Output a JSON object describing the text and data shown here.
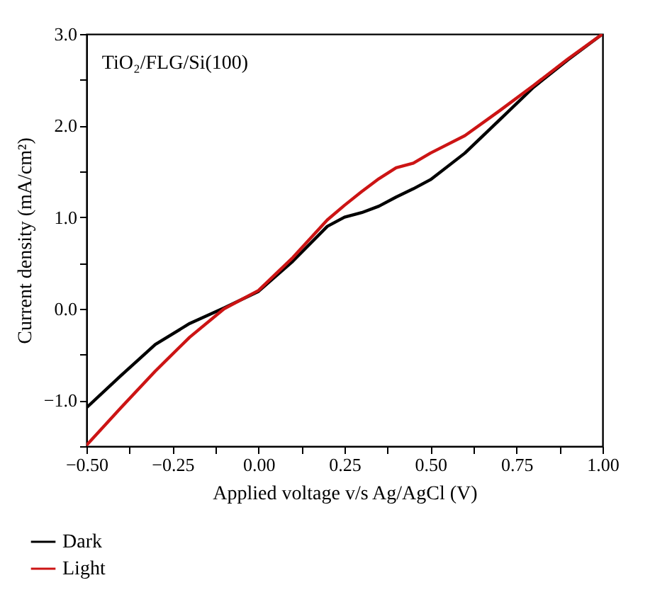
{
  "chart_data": {
    "type": "line",
    "xlabel": "Applied voltage v/s Ag/AgCl (V)",
    "ylabel": "Current density (mA/cm²)",
    "annotations": [
      "TiO₂/FLG/Si(100)"
    ],
    "xlim": [
      -0.5,
      1.0
    ],
    "ylim": [
      -1.5,
      3.0
    ],
    "xticks": [
      {
        "value": -0.5,
        "label": "−0.50"
      },
      {
        "value": -0.375,
        "label": null
      },
      {
        "value": -0.25,
        "label": "−0.25"
      },
      {
        "value": -0.125,
        "label": null
      },
      {
        "value": 0,
        "label": "0.00"
      },
      {
        "value": 0.125,
        "label": null
      },
      {
        "value": 0.25,
        "label": "0.25"
      },
      {
        "value": 0.375,
        "label": null
      },
      {
        "value": 0.5,
        "label": "0.50"
      },
      {
        "value": 0.625,
        "label": null
      },
      {
        "value": 0.75,
        "label": "0.75"
      },
      {
        "value": 0.875,
        "label": null
      },
      {
        "value": 1.0,
        "label": "1.00"
      }
    ],
    "yticks": [
      {
        "value": -1.5,
        "label": null
      },
      {
        "value": -1.0,
        "label": "−1.0"
      },
      {
        "value": -0.5,
        "label": null
      },
      {
        "value": 0,
        "label": "0.0"
      },
      {
        "value": 0.5,
        "label": null
      },
      {
        "value": 1.0,
        "label": "1.0"
      },
      {
        "value": 1.5,
        "label": null
      },
      {
        "value": 2.0,
        "label": "2.0"
      },
      {
        "value": 2.5,
        "label": null
      },
      {
        "value": 3.0,
        "label": "3.0"
      }
    ],
    "x": [
      -0.5,
      -0.4,
      -0.3,
      -0.2,
      -0.1,
      0,
      0.1,
      0.2,
      0.25,
      0.3,
      0.35,
      0.4,
      0.45,
      0.5,
      0.6,
      0.7,
      0.8,
      0.9,
      1.0
    ],
    "series": [
      {
        "name": "Dark",
        "color": "#000000",
        "values": [
          -1.08,
          -0.73,
          -0.39,
          -0.16,
          0.01,
          0.19,
          0.52,
          0.9,
          1.0,
          1.05,
          1.12,
          1.22,
          1.31,
          1.41,
          1.7,
          2.06,
          2.42,
          2.72,
          3.0
        ]
      },
      {
        "name": "Light",
        "color": "#cc1414",
        "values": [
          -1.49,
          -1.08,
          -0.68,
          -0.31,
          0.0,
          0.2,
          0.56,
          0.97,
          1.13,
          1.28,
          1.42,
          1.54,
          1.59,
          1.7,
          1.89,
          2.16,
          2.44,
          2.73,
          3.0
        ]
      }
    ],
    "grid": false,
    "legend": "bottom left"
  }
}
